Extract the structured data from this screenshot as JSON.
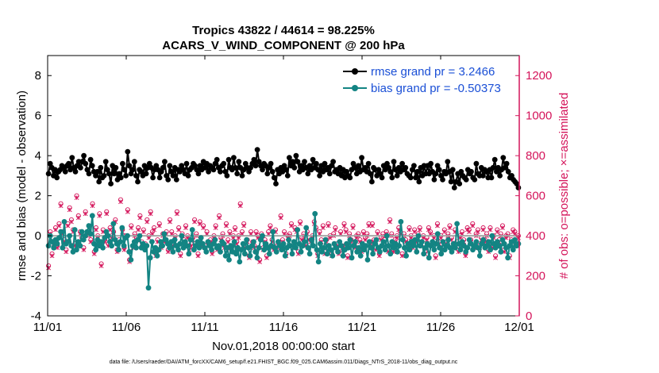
{
  "chart_data": {
    "type": "line",
    "title": "Tropics 43822 / 44614 = 98.225%",
    "subtitle": "ACARS_V_WIND_COMPONENT @ 200 hPa",
    "xlabel": "Nov.01,2018 00:00:00 start",
    "ylabel": "rmse and bias (model - observation)",
    "y2label": "# of obs: o=possible; ×=assimilated",
    "footnote": "data file: /Users/raeder/DAI/ATM_forcXX/CAM6_setup/f.e21.FHIST_BGC.f09_025.CAM6assim.011/Diags_NTrS_2018-11/obs_diag_output.nc",
    "xlim": [
      0,
      30
    ],
    "ylim": [
      -4,
      9
    ],
    "y2lim": [
      0,
      1300
    ],
    "x_tick_labels": [
      "11/01",
      "11/06",
      "11/11",
      "11/16",
      "11/21",
      "11/26",
      "12/01"
    ],
    "y_tick_labels": [
      "-4",
      "-2",
      "0",
      "2",
      "4",
      "6",
      "8"
    ],
    "y2_tick_labels": [
      "0",
      "200",
      "400",
      "600",
      "800",
      "1000",
      "1200"
    ],
    "zero_line": 0,
    "colors": {
      "rmse": "#000000",
      "bias": "#138483",
      "obs": "#d4145a",
      "zero": "#a6a6a6",
      "legend_text": "#1a4fd6"
    },
    "series": [
      {
        "name": "rmse grand pr = 3.2466",
        "values": [
          3.1,
          3.6,
          3.4,
          3.0,
          3.3,
          2.9,
          3.2,
          3.3,
          3.5,
          3.4,
          3.2,
          3.5,
          3.6,
          3.3,
          3.9,
          3.4,
          3.2,
          3.5,
          3.7,
          3.4,
          3.7,
          4.0,
          3.6,
          3.3,
          3.1,
          3.8,
          3.5,
          3.2,
          3.0,
          3.2,
          2.7,
          3.4,
          2.9,
          3.0,
          3.7,
          3.3,
          3.1,
          2.6,
          3.5,
          3.1,
          3.4,
          2.8,
          3.1,
          2.9,
          3.6,
          3.3,
          3.0,
          4.2,
          3.5,
          3.1,
          3.3,
          3.7,
          3.0,
          2.7,
          3.3,
          3.2,
          3.0,
          3.5,
          3.1,
          3.4,
          3.6,
          3.4,
          2.9,
          3.3,
          3.5,
          3.3,
          2.9,
          3.2,
          3.4,
          3.7,
          3.0,
          2.8,
          3.5,
          3.2,
          3.0,
          3.4,
          2.8,
          3.3,
          3.2,
          3.5,
          3.3,
          3.1,
          3.6,
          3.0,
          3.3,
          3.4,
          3.6,
          3.5,
          3.3,
          3.1,
          3.5,
          3.3,
          3.7,
          3.4,
          3.6,
          3.2,
          3.5,
          3.4,
          3.3,
          3.6,
          3.8,
          3.4,
          3.2,
          3.5,
          3.6,
          3.2,
          3.0,
          3.8,
          3.4,
          3.3,
          3.9,
          3.4,
          3.1,
          3.7,
          3.4,
          3.0,
          3.3,
          3.6,
          3.4,
          3.2,
          3.4,
          3.6,
          3.8,
          3.5,
          4.3,
          3.7,
          3.5,
          3.3,
          3.6,
          3.5,
          3.1,
          3.4,
          3.6,
          3.2,
          2.9,
          2.6,
          3.3,
          3.1,
          3.4,
          3.2,
          3.5,
          3.3,
          3.0,
          3.9,
          3.5,
          3.7,
          3.4,
          4.0,
          3.7,
          3.2,
          3.5,
          3.3,
          3.7,
          3.4,
          3.1,
          3.5,
          3.3,
          3.8,
          3.4,
          3.6,
          3.3,
          3.0,
          3.5,
          3.2,
          3.6,
          3.3,
          3.4,
          3.1,
          3.5,
          3.7,
          3.2,
          3.3,
          3.1,
          3.4,
          3.0,
          3.3,
          2.9,
          3.2,
          3.0,
          2.9,
          3.3,
          3.6,
          3.4,
          3.1,
          3.5,
          3.2,
          3.9,
          3.3,
          3.4,
          3.2,
          3.6,
          3.1,
          2.7,
          3.4,
          3.3,
          3.0,
          3.3,
          3.1,
          2.9,
          3.5,
          3.3,
          3.6,
          3.4,
          3.2,
          2.9,
          3.7,
          3.3,
          3.0,
          3.4,
          3.2,
          3.6,
          3.3,
          3.4,
          3.1,
          3.0,
          2.9,
          3.3,
          3.5,
          2.9,
          3.2,
          2.7,
          3.4,
          3.0,
          3.5,
          3.1,
          3.5,
          3.1,
          3.6,
          3.2,
          2.8,
          3.1,
          3.5,
          3.3,
          3.0,
          2.8,
          3.2,
          3.1,
          3.7,
          3.2,
          2.7,
          3.3,
          2.4,
          2.7,
          3.1,
          2.6,
          3.2,
          3.0,
          2.9,
          2.8,
          3.3,
          3.1,
          3.2,
          2.9,
          2.8,
          3.6,
          3.1,
          3.0,
          3.4,
          3.0,
          3.3,
          3.2,
          2.9,
          3.3,
          2.9,
          3.4,
          3.8,
          3.2,
          3.4,
          3.0,
          3.3,
          3.9,
          3.4,
          3.6,
          3.2,
          2.9,
          3.0,
          2.8,
          2.7,
          2.6,
          2.4
        ]
      },
      {
        "name": "bias grand pr = -0.50373",
        "values": [
          -0.5,
          0.0,
          -0.3,
          -0.6,
          -0.2,
          -0.4,
          -0.1,
          0.2,
          -0.6,
          0.7,
          -0.4,
          -0.3,
          0.0,
          -0.5,
          -0.8,
          0.3,
          -0.7,
          -0.3,
          -0.5,
          0.2,
          -0.2,
          0.0,
          0.2,
          0.5,
          0.1,
          1.0,
          -0.4,
          -0.7,
          -0.2,
          -0.5,
          -0.3,
          -0.6,
          -0.1,
          0.2,
          0.0,
          -0.3,
          -0.5,
          0.6,
          -0.2,
          -0.4,
          -0.7,
          -0.3,
          0.4,
          -0.5,
          -0.1,
          0.0,
          -0.8,
          -1.2,
          -0.5,
          -0.3,
          -0.6,
          -0.2,
          0.0,
          -0.6,
          -0.4,
          -0.7,
          -0.5,
          -2.6,
          -1.1,
          -0.3,
          -0.8,
          -0.6,
          -1.0,
          -0.7,
          -0.3,
          -0.5,
          0.1,
          -0.2,
          -0.4,
          -0.6,
          -0.3,
          -0.8,
          -0.2,
          -0.5,
          -0.7,
          -0.4,
          0.0,
          -0.6,
          -0.3,
          -0.5,
          -0.9,
          -0.2,
          0.3,
          -0.7,
          -0.5,
          -0.3,
          -0.6,
          -0.1,
          -0.4,
          -0.6,
          -0.8,
          -0.3,
          -0.5,
          -0.7,
          -0.4,
          -0.2,
          -0.6,
          -0.5,
          -0.8,
          -0.3,
          -0.4,
          -1.0,
          -0.6,
          -1.2,
          -0.5,
          -0.8,
          -0.3,
          -0.9,
          -0.6,
          -1.3,
          -0.7,
          -0.4,
          -0.9,
          -0.2,
          -0.6,
          -1.0,
          -0.5,
          -0.3,
          -0.8,
          -1.1,
          -0.6,
          -0.2,
          0.0,
          -0.7,
          -0.4,
          -0.6,
          -0.9,
          -0.5,
          0.2,
          -0.6,
          -0.8,
          -0.3,
          -0.5,
          -0.7,
          -0.4,
          -1.0,
          -0.6,
          -0.2,
          -0.5,
          -0.9,
          -0.3,
          -0.6,
          0.3,
          -0.4,
          -0.8,
          -0.5,
          -0.3,
          0.4,
          -0.6,
          -0.9,
          -0.2,
          -0.5,
          1.1,
          -0.7,
          -1.3,
          -0.4,
          -0.8,
          -0.6,
          -0.2,
          -0.9,
          -0.5,
          -0.7,
          -1.0,
          -0.4,
          -0.6,
          -0.8,
          -0.3,
          -0.5,
          -1.0,
          -0.7,
          -0.4,
          -0.6,
          -0.2,
          -1.1,
          -0.5,
          -0.3,
          -0.8,
          -0.6,
          -1.0,
          -0.4,
          -0.7,
          -0.5,
          -1.2,
          -0.3,
          -0.6,
          -0.9,
          -0.4,
          -0.2,
          -0.6,
          -0.8,
          -0.5,
          -0.3,
          -0.7,
          0.0,
          -0.5,
          -0.9,
          -0.3,
          -0.6,
          -0.4,
          -0.8,
          -0.5,
          0.7,
          -0.2,
          -0.6,
          -1.0,
          -0.4,
          -0.7,
          -0.3,
          -0.5,
          -0.2,
          -0.8,
          0.0,
          -0.5,
          -0.3,
          -0.9,
          -0.6,
          -0.4,
          -1.1,
          -0.5,
          -0.3,
          -0.7,
          -0.4,
          0.1,
          -0.6,
          -0.9,
          -0.3,
          -0.7,
          -0.5,
          -0.2,
          -0.6,
          -0.8,
          -0.4,
          -0.6,
          0.6,
          -0.4,
          -0.7,
          -0.3,
          -0.5,
          -0.8,
          -0.6,
          -0.2,
          -0.4,
          -0.7,
          -0.5,
          -0.3,
          -0.6,
          -1.0,
          -0.4,
          -0.2,
          -0.6,
          -0.5,
          -0.3,
          -0.7,
          0.0,
          -0.4,
          -0.6,
          -0.3,
          -0.5,
          -0.8,
          -0.2,
          -0.4,
          -0.6,
          -1.1,
          -0.5,
          -0.3,
          -0.7,
          -0.2,
          -0.5,
          -0.4
        ]
      }
    ],
    "obs_possible": [
      250,
      420,
      310,
      370,
      440,
      350,
      460,
      560,
      420,
      380,
      330,
      460,
      540,
      480,
      430,
      360,
      600,
      500,
      420,
      390,
      340,
      520,
      420,
      410,
      380,
      560,
      320,
      440,
      400,
      510,
      260,
      430,
      380,
      520,
      360,
      440,
      400,
      420,
      480,
      330,
      380,
      580,
      430,
      340,
      400,
      530,
      280,
      450,
      350,
      410,
      390,
      440,
      500,
      370,
      430,
      360,
      480,
      400,
      520,
      420,
      440,
      310,
      380,
      460,
      350,
      410,
      380,
      420,
      330,
      480,
      420,
      360,
      400,
      520,
      440,
      310,
      410,
      380,
      450,
      400,
      340,
      360,
      390,
      480,
      410,
      310,
      470,
      360,
      450,
      350,
      420,
      360,
      380,
      320,
      400,
      450,
      340,
      500,
      390,
      410,
      350,
      460,
      380,
      420,
      330,
      400,
      440,
      370,
      400,
      560,
      420,
      460,
      350,
      380,
      300,
      420,
      370,
      350,
      420,
      400,
      280,
      410,
      340,
      380,
      300,
      420,
      450,
      380,
      340,
      430,
      350,
      360,
      500,
      380,
      420,
      310,
      400,
      410,
      460,
      350,
      440,
      430,
      320,
      470,
      390,
      410,
      360,
      420,
      390,
      380,
      400,
      470,
      440,
      310,
      420,
      380,
      450,
      320,
      380,
      460,
      400,
      310,
      410,
      440,
      360,
      320,
      420,
      350,
      460,
      430,
      300,
      410,
      380,
      450,
      350,
      400,
      410,
      380,
      330,
      420,
      390,
      410,
      460,
      370,
      460,
      380,
      340,
      420,
      310,
      390,
      410,
      380,
      420,
      330,
      480,
      410,
      330,
      380,
      400,
      440,
      420,
      310,
      410,
      380,
      350,
      440,
      400,
      350,
      430,
      380,
      410,
      440,
      370,
      400,
      320,
      390,
      440,
      420,
      360,
      400,
      300,
      460,
      370,
      400,
      340,
      430,
      370,
      410,
      450,
      390,
      360,
      430,
      370,
      330,
      400,
      420,
      380,
      310,
      440,
      430,
      380,
      460,
      350,
      410,
      430,
      350,
      390,
      440,
      380,
      410,
      330,
      440,
      350,
      400,
      300,
      430,
      380,
      410,
      450,
      330,
      400,
      410,
      300,
      380,
      430,
      420,
      370,
      400
    ],
    "obs_assimilated": [
      240,
      410,
      300,
      360,
      430,
      340,
      450,
      550,
      410,
      370,
      320,
      450,
      530,
      470,
      420,
      350,
      590,
      490,
      410,
      380,
      330,
      510,
      410,
      400,
      370,
      550,
      310,
      430,
      390,
      500,
      250,
      420,
      370,
      510,
      350,
      430,
      390,
      410,
      470,
      320,
      370,
      570,
      420,
      330,
      390,
      520,
      270,
      440,
      340,
      400,
      380,
      430,
      490,
      360,
      420,
      350,
      470,
      390,
      510,
      410,
      430,
      300,
      370,
      450,
      340,
      400,
      370,
      410,
      320,
      470,
      410,
      350,
      390,
      510,
      430,
      300,
      400,
      370,
      440,
      390,
      330,
      350,
      380,
      470,
      400,
      300,
      460,
      350,
      440,
      340,
      410,
      350,
      370,
      310,
      390,
      440,
      330,
      490,
      380,
      400,
      340,
      450,
      370,
      410,
      320,
      390,
      430,
      360,
      390,
      550,
      410,
      450,
      340,
      370,
      290,
      410,
      360,
      340,
      410,
      390,
      270,
      400,
      330,
      370,
      290,
      410,
      440,
      370,
      330,
      420,
      340,
      350,
      490,
      370,
      410,
      300,
      390,
      400,
      450,
      340,
      430,
      420,
      310,
      460,
      380,
      400,
      350,
      410,
      380,
      370,
      390,
      460,
      430,
      300,
      410,
      370,
      440,
      310,
      370,
      450,
      390,
      300,
      400,
      430,
      350,
      310,
      410,
      340,
      450,
      420,
      290,
      400,
      370,
      440,
      340,
      390,
      400,
      370,
      320,
      410,
      380,
      400,
      450,
      360,
      450,
      370,
      330,
      410,
      300,
      380,
      400,
      370,
      410,
      320,
      470,
      400,
      320,
      370,
      390,
      430,
      410,
      300,
      400,
      370,
      340,
      430,
      390,
      340,
      420,
      370,
      400,
      430,
      360,
      390,
      310,
      380,
      430,
      410,
      350,
      390,
      290,
      450,
      360,
      390,
      330,
      420,
      360,
      400,
      440,
      380,
      350,
      420,
      360,
      320,
      390,
      410,
      370,
      300,
      430,
      420,
      370,
      450,
      340,
      400,
      420,
      340,
      380,
      430,
      370,
      400,
      320,
      430,
      340,
      390,
      290,
      420,
      370,
      400,
      440,
      320,
      390,
      400,
      290,
      370,
      420,
      410,
      360,
      390
    ]
  }
}
